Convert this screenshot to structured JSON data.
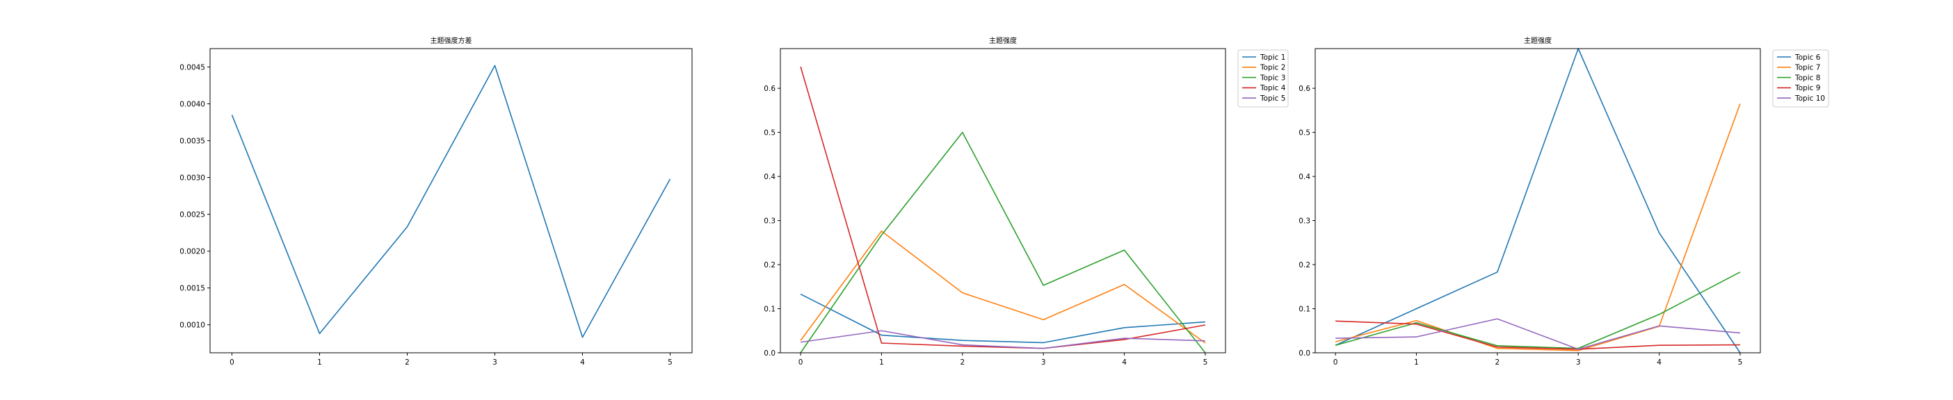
{
  "colors": [
    "#1f77b4",
    "#ff7f0e",
    "#2ca02c",
    "#d62728",
    "#9467bd"
  ],
  "chart_data": [
    {
      "type": "line",
      "title": "主题强度方差",
      "x": [
        0,
        1,
        2,
        3,
        4,
        5
      ],
      "xlim": [
        -0.25,
        5.25
      ],
      "ylim": [
        0.00062,
        0.00475
      ],
      "xticks": [
        "0",
        "1",
        "2",
        "3",
        "4",
        "5"
      ],
      "yticks": [
        "0.0010",
        "0.0015",
        "0.0020",
        "0.0025",
        "0.0030",
        "0.0035",
        "0.0040",
        "0.0045"
      ],
      "ytick_values": [
        0.001,
        0.0015,
        0.002,
        0.0025,
        0.003,
        0.0035,
        0.004,
        0.0045
      ],
      "legend": "none",
      "grid": false,
      "series": [
        {
          "values": [
            0.00385,
            0.00088,
            0.00233,
            0.00452,
            0.00083,
            0.00298
          ]
        }
      ]
    },
    {
      "type": "line",
      "title": "主题强度",
      "x": [
        0,
        1,
        2,
        3,
        4,
        5
      ],
      "xlim": [
        -0.25,
        5.25
      ],
      "ylim": [
        0,
        0.69
      ],
      "xticks": [
        "0",
        "1",
        "2",
        "3",
        "4",
        "5"
      ],
      "yticks": [
        "0.0",
        "0.1",
        "0.2",
        "0.3",
        "0.4",
        "0.5",
        "0.6"
      ],
      "ytick_values": [
        0,
        0.1,
        0.2,
        0.3,
        0.4,
        0.5,
        0.6
      ],
      "legend": "outside upper right",
      "grid": false,
      "series": [
        {
          "name": "Topic 1",
          "values": [
            0.133,
            0.04,
            0.028,
            0.023,
            0.057,
            0.07
          ]
        },
        {
          "name": "Topic 2",
          "values": [
            0.028,
            0.276,
            0.136,
            0.075,
            0.155,
            0.022
          ]
        },
        {
          "name": "Topic 3",
          "values": [
            0.0,
            0.267,
            0.5,
            0.153,
            0.233,
            0.0
          ]
        },
        {
          "name": "Topic 4",
          "values": [
            0.649,
            0.022,
            0.015,
            0.01,
            0.03,
            0.063
          ]
        },
        {
          "name": "Topic 5",
          "values": [
            0.024,
            0.05,
            0.018,
            0.01,
            0.033,
            0.027
          ]
        }
      ]
    },
    {
      "type": "line",
      "title": "主题强度",
      "x": [
        0,
        1,
        2,
        3,
        4,
        5
      ],
      "xlim": [
        -0.25,
        5.25
      ],
      "ylim": [
        0,
        0.69
      ],
      "xticks": [
        "0",
        "1",
        "2",
        "3",
        "4",
        "5"
      ],
      "yticks": [
        "0.0",
        "0.1",
        "0.2",
        "0.3",
        "0.4",
        "0.5",
        "0.6"
      ],
      "ytick_values": [
        0,
        0.1,
        0.2,
        0.3,
        0.4,
        0.5,
        0.6
      ],
      "legend": "outside upper right",
      "grid": false,
      "series": [
        {
          "name": "Topic 6",
          "values": [
            0.017,
            0.1,
            0.183,
            0.69,
            0.272,
            0.0
          ]
        },
        {
          "name": "Topic 7",
          "values": [
            0.025,
            0.073,
            0.01,
            0.005,
            0.06,
            0.565
          ]
        },
        {
          "name": "Topic 8",
          "values": [
            0.017,
            0.068,
            0.016,
            0.01,
            0.087,
            0.183
          ]
        },
        {
          "name": "Topic 9",
          "values": [
            0.072,
            0.065,
            0.013,
            0.008,
            0.017,
            0.018
          ]
        },
        {
          "name": "Topic 10",
          "values": [
            0.033,
            0.036,
            0.077,
            0.008,
            0.061,
            0.045
          ]
        }
      ]
    }
  ]
}
